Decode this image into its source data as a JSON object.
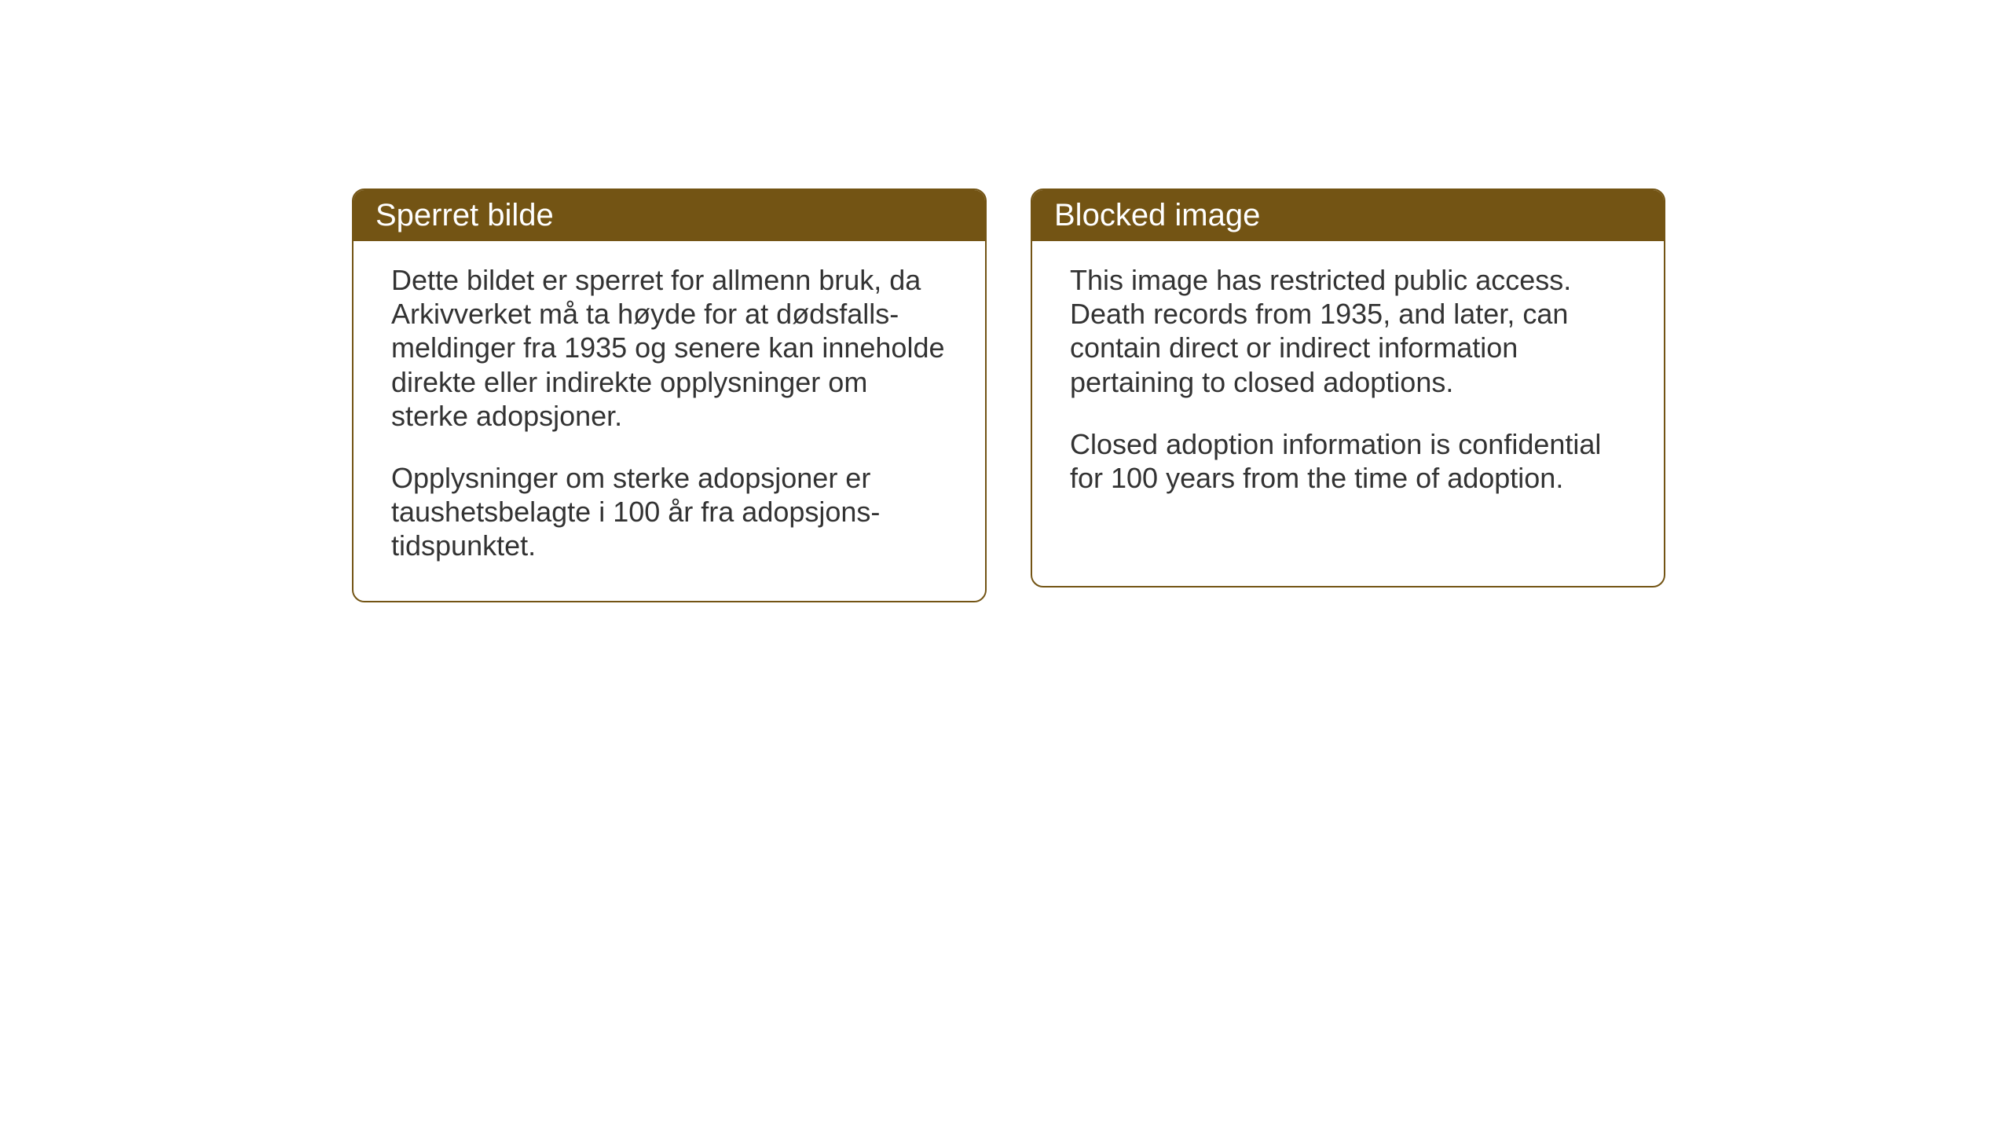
{
  "cards": {
    "norwegian": {
      "title": "Sperret bilde",
      "paragraph1": "Dette bildet er sperret for allmenn bruk, da Arkivverket må ta høyde for at dødsfalls-meldinger fra 1935 og senere kan inneholde direkte eller indirekte opplysninger om sterke adopsjoner.",
      "paragraph2": "Opplysninger om sterke adopsjoner er taushetsbelagte i 100 år fra adopsjons-tidspunktet."
    },
    "english": {
      "title": "Blocked image",
      "paragraph1": "This image has restricted public access. Death records from 1935, and later, can contain direct or indirect information pertaining to closed adoptions.",
      "paragraph2": "Closed adoption information is confidential for 100 years from the time of adoption."
    }
  },
  "styling": {
    "header_background": "#735414",
    "header_text_color": "#ffffff",
    "border_color": "#735414",
    "body_text_color": "#333333",
    "page_background": "#ffffff",
    "title_fontsize": 40,
    "body_fontsize": 36,
    "border_radius": 16,
    "border_width": 2
  }
}
